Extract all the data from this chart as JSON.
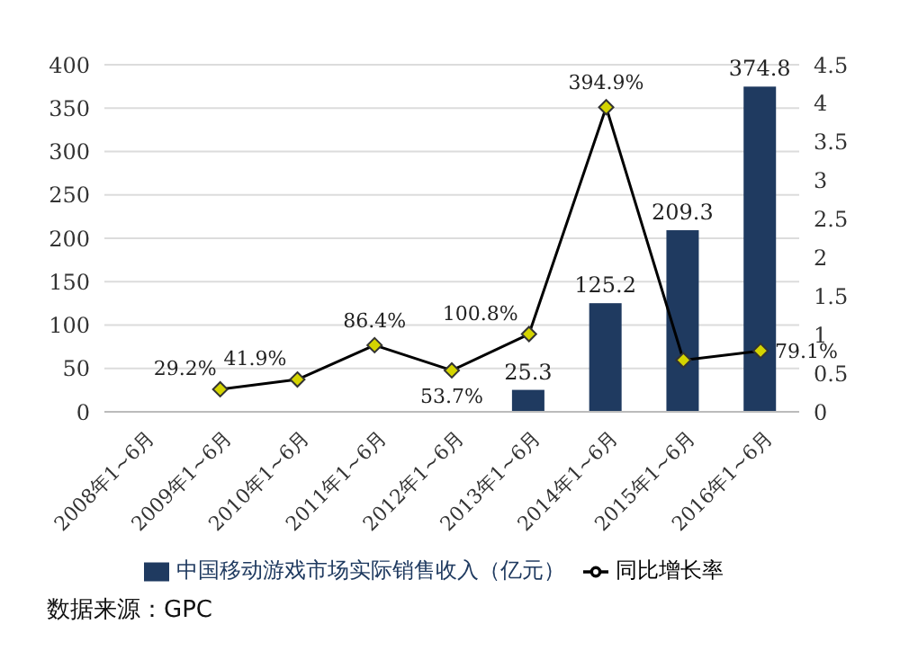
{
  "chart_data": {
    "type": "bar",
    "categories": [
      "2008年1~6月",
      "2009年1~6月",
      "2010年1~6月",
      "2011年1~6月",
      "2012年1~6月",
      "2013年1~6月",
      "2014年1~6月",
      "2015年1~6月",
      "2016年1~6月"
    ],
    "series": [
      {
        "name": "中国移动游戏市场实际销售收入（亿元）",
        "color": "#1f3a60",
        "values": [
          null,
          null,
          null,
          null,
          null,
          25.3,
          125.2,
          209.3,
          374.8
        ],
        "value_labels": [
          null,
          null,
          null,
          null,
          null,
          "25.3",
          "125.2",
          "209.3",
          "374.8"
        ]
      },
      {
        "name": "同比增长率",
        "type": "line",
        "axis": "y2",
        "color": "#000000",
        "marker": "diamond",
        "values": [
          null,
          0.292,
          0.419,
          0.864,
          0.537,
          1.008,
          3.949,
          0.67,
          0.791
        ],
        "value_labels": [
          null,
          "29.2%",
          "41.9%",
          "86.4%",
          "53.7%",
          "100.8%",
          "394.9%",
          null,
          "79.1%"
        ]
      }
    ],
    "ylim": [
      0,
      400
    ],
    "yticks": [
      0,
      50,
      100,
      150,
      200,
      250,
      300,
      350,
      400
    ],
    "y2lim": [
      0,
      4.5
    ],
    "y2ticks": [
      0,
      0.5,
      1,
      1.5,
      2,
      2.5,
      3,
      3.5,
      4,
      4.5
    ],
    "grid": "y",
    "legend": "bottom",
    "annotations": [
      "数据来源：GPC"
    ]
  }
}
